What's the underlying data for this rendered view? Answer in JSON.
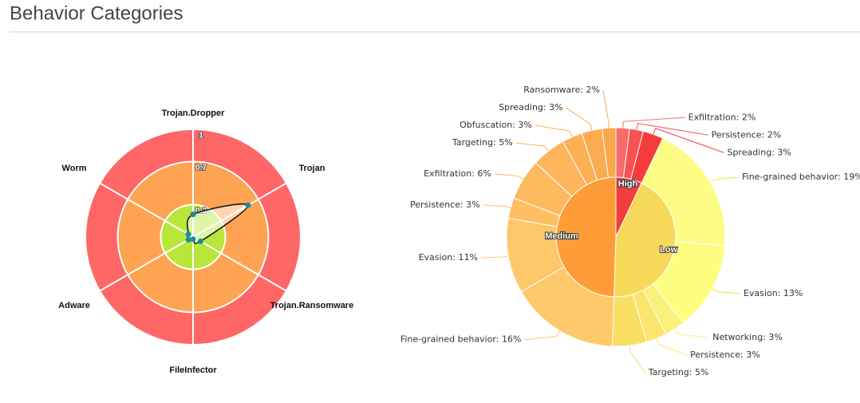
{
  "header": {
    "title": "Behavior Categories"
  },
  "chart_data": [
    {
      "type": "radar",
      "categories": [
        "Trojan.Dropper",
        "Trojan",
        "Trojan.Ransomware",
        "FileInfector",
        "Adware",
        "Worm"
      ],
      "series": [
        {
          "color": "#1a8c9c",
          "values": [
            0.21,
            0.59,
            0.08,
            0.02,
            0.05,
            0.05
          ]
        }
      ],
      "ylim": [
        0,
        1
      ],
      "yticks": [
        0.3,
        0.7,
        1
      ],
      "bands": [
        {
          "from": 0.7,
          "to": 1,
          "color": "#ff6666"
        },
        {
          "from": 0.3,
          "to": 0.7,
          "color": "#fea352"
        },
        {
          "from": 0,
          "to": 0.3,
          "color": "#b9e63a"
        }
      ]
    },
    {
      "type": "sunburst",
      "groups": [
        {
          "name": "High",
          "value": 7,
          "color": "#f23d3d",
          "values": [
            2,
            2,
            3
          ],
          "value_labels": [
            "Exfiltration: 2%",
            "Persistence: 2%",
            "Spreading: 3%"
          ],
          "colors": [
            "#f96b6b",
            "#f75252",
            "#f53b3b"
          ]
        },
        {
          "name": "Low",
          "value": 43,
          "color": "#f7d95a",
          "values": [
            19,
            13,
            3,
            3,
            5
          ],
          "value_labels": [
            "Fine-grained behavior: 19%",
            "Evasion: 13%",
            "Networking: 3%",
            "Persistence: 3%",
            "Targeting: 5%"
          ],
          "colors": [
            "#fdfd86",
            "#fdfd80",
            "#fbf07a",
            "#fbe56e",
            "#f9de64"
          ]
        },
        {
          "name": "Medium",
          "value": 49,
          "color": "#fe9c38",
          "values": [
            16,
            11,
            3,
            6,
            5,
            3,
            3,
            2
          ],
          "value_labels": [
            "Fine-grained behavior: 16%",
            "Evasion: 11%",
            "Persistence: 3%",
            "Exfiltration: 6%",
            "Targeting: 5%",
            "Obfuscation: 3%",
            "Spreading: 3%",
            "Ransomware: 2%"
          ],
          "colors": [
            "#fec96b",
            "#fec86a",
            "#fdbf62",
            "#fdb95e",
            "#fcb55a",
            "#fcb055",
            "#fbab50",
            "#fba84c"
          ]
        }
      ]
    }
  ]
}
